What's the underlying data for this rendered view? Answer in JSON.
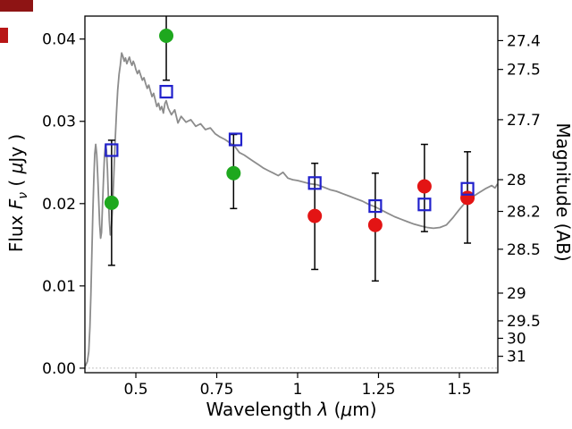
{
  "figure": {
    "background": "#ffffff",
    "axis_color": "#000000",
    "tick_color": "#000000"
  },
  "artifacts": [
    {
      "name": "top-left-box",
      "color": "#8e1414"
    },
    {
      "name": "left-edge-box",
      "color": "#b81616"
    }
  ],
  "chart_data": {
    "type": "scatter",
    "title": "",
    "xlabel": "Wavelength λ (μm)",
    "xlabel_parts": {
      "prefix": "Wavelength ",
      "symbol": "λ",
      "mid": " (",
      "unit": "μ",
      "close": "m)"
    },
    "ylabel_left": "Flux Fν ( μJy )",
    "ylabel_left_parts": {
      "prefix": "Flux ",
      "symbol": "F",
      "subscript": "ν",
      "mid": " ( ",
      "unit": "μ",
      "close": "Jy )"
    },
    "ylabel_right": "Magnitude (AB)",
    "xlim": [
      0.3425,
      1.6188
    ],
    "ylim_flux": [
      -0.00055,
      0.04279
    ],
    "grid": false,
    "legend": "none",
    "mag_zeropoint": 23.9,
    "x_ticks": [
      {
        "v": 0.5,
        "label": "0.5"
      },
      {
        "v": 0.75,
        "label": "0.75"
      },
      {
        "v": 1,
        "label": "1"
      },
      {
        "v": 1.25,
        "label": "1.25"
      },
      {
        "v": 1.5,
        "label": "1.5"
      }
    ],
    "y_ticks_flux": [
      {
        "v": 0,
        "label": "0.00"
      },
      {
        "v": 0.01,
        "label": "0.01"
      },
      {
        "v": 0.02,
        "label": "0.02"
      },
      {
        "v": 0.03,
        "label": "0.03"
      },
      {
        "v": 0.04,
        "label": "0.04"
      }
    ],
    "y_ticks_mag": [
      {
        "v": 27.4,
        "label": "27.4"
      },
      {
        "v": 27.5,
        "label": "27.5"
      },
      {
        "v": 27.7,
        "label": "27.7"
      },
      {
        "v": 28,
        "label": "28"
      },
      {
        "v": 28.2,
        "label": "28.2"
      },
      {
        "v": 28.5,
        "label": "28.5"
      },
      {
        "v": 29,
        "label": "29"
      },
      {
        "v": 29.5,
        "label": "29.5"
      },
      {
        "v": 30,
        "label": "30"
      },
      {
        "v": 31,
        "label": "31"
      }
    ],
    "zero_line": {
      "flux": 0,
      "color": "#b0b0b0",
      "style": "dotted"
    },
    "model_spectrum": {
      "name": "model-sed",
      "color": "#8c8c8c",
      "width": 1.8,
      "points": [
        [
          0.343,
          0.0002
        ],
        [
          0.35,
          0.0008
        ],
        [
          0.3545,
          0.002
        ],
        [
          0.358,
          0.005
        ],
        [
          0.361,
          0.009
        ],
        [
          0.364,
          0.014
        ],
        [
          0.367,
          0.019
        ],
        [
          0.37,
          0.023
        ],
        [
          0.373,
          0.026
        ],
        [
          0.376,
          0.0272
        ],
        [
          0.379,
          0.026
        ],
        [
          0.382,
          0.0235
        ],
        [
          0.385,
          0.0205
        ],
        [
          0.388,
          0.0175
        ],
        [
          0.391,
          0.0158
        ],
        [
          0.394,
          0.0165
        ],
        [
          0.397,
          0.0198
        ],
        [
          0.4,
          0.023
        ],
        [
          0.403,
          0.0258
        ],
        [
          0.406,
          0.0272
        ],
        [
          0.409,
          0.0265
        ],
        [
          0.412,
          0.0242
        ],
        [
          0.415,
          0.021
        ],
        [
          0.418,
          0.018
        ],
        [
          0.421,
          0.0162
        ],
        [
          0.424,
          0.0168
        ],
        [
          0.428,
          0.0195
        ],
        [
          0.432,
          0.0235
        ],
        [
          0.436,
          0.0275
        ],
        [
          0.44,
          0.031
        ],
        [
          0.444,
          0.0338
        ],
        [
          0.448,
          0.0357
        ],
        [
          0.452,
          0.0368
        ],
        [
          0.456,
          0.0383
        ],
        [
          0.46,
          0.0379
        ],
        [
          0.464,
          0.0373
        ],
        [
          0.468,
          0.0377
        ],
        [
          0.472,
          0.037
        ],
        [
          0.476,
          0.0374
        ],
        [
          0.48,
          0.0378
        ],
        [
          0.484,
          0.0372
        ],
        [
          0.488,
          0.0368
        ],
        [
          0.492,
          0.0373
        ],
        [
          0.496,
          0.0369
        ],
        [
          0.5,
          0.0363
        ],
        [
          0.505,
          0.0358
        ],
        [
          0.51,
          0.0362
        ],
        [
          0.515,
          0.0356
        ],
        [
          0.52,
          0.035
        ],
        [
          0.525,
          0.0353
        ],
        [
          0.53,
          0.0346
        ],
        [
          0.535,
          0.034
        ],
        [
          0.54,
          0.0344
        ],
        [
          0.545,
          0.0337
        ],
        [
          0.55,
          0.033
        ],
        [
          0.555,
          0.0334
        ],
        [
          0.56,
          0.0326
        ],
        [
          0.565,
          0.0318
        ],
        [
          0.57,
          0.0322
        ],
        [
          0.575,
          0.0314
        ],
        [
          0.58,
          0.0318
        ],
        [
          0.585,
          0.031
        ],
        [
          0.59,
          0.0322
        ],
        [
          0.594,
          0.0325
        ],
        [
          0.6,
          0.0316
        ],
        [
          0.61,
          0.0308
        ],
        [
          0.62,
          0.0314
        ],
        [
          0.63,
          0.0298
        ],
        [
          0.64,
          0.0306
        ],
        [
          0.655,
          0.0299
        ],
        [
          0.67,
          0.0302
        ],
        [
          0.685,
          0.0294
        ],
        [
          0.7,
          0.0297
        ],
        [
          0.715,
          0.029
        ],
        [
          0.73,
          0.0292
        ],
        [
          0.745,
          0.0285
        ],
        [
          0.76,
          0.0281
        ],
        [
          0.775,
          0.0278
        ],
        [
          0.79,
          0.0274
        ],
        [
          0.805,
          0.027
        ],
        [
          0.82,
          0.0262
        ],
        [
          0.835,
          0.0259
        ],
        [
          0.85,
          0.0255
        ],
        [
          0.865,
          0.0251
        ],
        [
          0.88,
          0.0247
        ],
        [
          0.895,
          0.0243
        ],
        [
          0.91,
          0.024
        ],
        [
          0.925,
          0.0237
        ],
        [
          0.94,
          0.0234
        ],
        [
          0.955,
          0.0238
        ],
        [
          0.97,
          0.0231
        ],
        [
          0.985,
          0.0229
        ],
        [
          1.0,
          0.0228
        ],
        [
          1.02,
          0.0226
        ],
        [
          1.04,
          0.0224
        ],
        [
          1.06,
          0.0223
        ],
        [
          1.08,
          0.022
        ],
        [
          1.1,
          0.0217
        ],
        [
          1.12,
          0.0215
        ],
        [
          1.14,
          0.0212
        ],
        [
          1.16,
          0.0209
        ],
        [
          1.18,
          0.0206
        ],
        [
          1.2,
          0.0203
        ],
        [
          1.22,
          0.0199
        ],
        [
          1.24,
          0.0196
        ],
        [
          1.26,
          0.0192
        ],
        [
          1.28,
          0.0188
        ],
        [
          1.3,
          0.0184
        ],
        [
          1.32,
          0.0181
        ],
        [
          1.34,
          0.0178
        ],
        [
          1.36,
          0.0175
        ],
        [
          1.38,
          0.0173
        ],
        [
          1.4,
          0.0171
        ],
        [
          1.42,
          0.017
        ],
        [
          1.44,
          0.0171
        ],
        [
          1.46,
          0.0174
        ],
        [
          1.48,
          0.0183
        ],
        [
          1.5,
          0.0193
        ],
        [
          1.52,
          0.0202
        ],
        [
          1.54,
          0.0208
        ],
        [
          1.56,
          0.0213
        ],
        [
          1.58,
          0.0218
        ],
        [
          1.6,
          0.0222
        ],
        [
          1.61,
          0.0219
        ],
        [
          1.618,
          0.0224
        ]
      ]
    },
    "series": [
      {
        "name": "green-circles",
        "marker": "circle",
        "color": "#1ea81e",
        "size": 8,
        "points": [
          {
            "x": 0.425,
            "f": 0.0201,
            "lo": 0.0076,
            "hi": 0.0076
          },
          {
            "x": 0.594,
            "f": 0.0404,
            "lo": 0.0054,
            "hi": 0.003
          },
          {
            "x": 0.802,
            "f": 0.0237,
            "lo": 0.0043,
            "hi": 0.0047
          }
        ]
      },
      {
        "name": "red-circles",
        "marker": "circle",
        "color": "#e31414",
        "size": 8,
        "points": [
          {
            "x": 1.053,
            "f": 0.0185,
            "lo": 0.0065,
            "hi": 0.0064
          },
          {
            "x": 1.24,
            "f": 0.0174,
            "lo": 0.0068,
            "hi": 0.0063
          },
          {
            "x": 1.392,
            "f": 0.0221,
            "lo": 0.0055,
            "hi": 0.0051
          },
          {
            "x": 1.525,
            "f": 0.0207,
            "lo": 0.0055,
            "hi": 0.0056
          }
        ]
      },
      {
        "name": "blue-open-squares",
        "marker": "open-square",
        "color": "#2121cc",
        "size": 13,
        "points": [
          {
            "x": 0.425,
            "f": 0.0265
          },
          {
            "x": 0.594,
            "f": 0.0336
          },
          {
            "x": 0.808,
            "f": 0.0278
          },
          {
            "x": 1.053,
            "f": 0.0225
          },
          {
            "x": 1.24,
            "f": 0.0197
          },
          {
            "x": 1.392,
            "f": 0.0199
          },
          {
            "x": 1.525,
            "f": 0.0218
          }
        ]
      }
    ]
  }
}
